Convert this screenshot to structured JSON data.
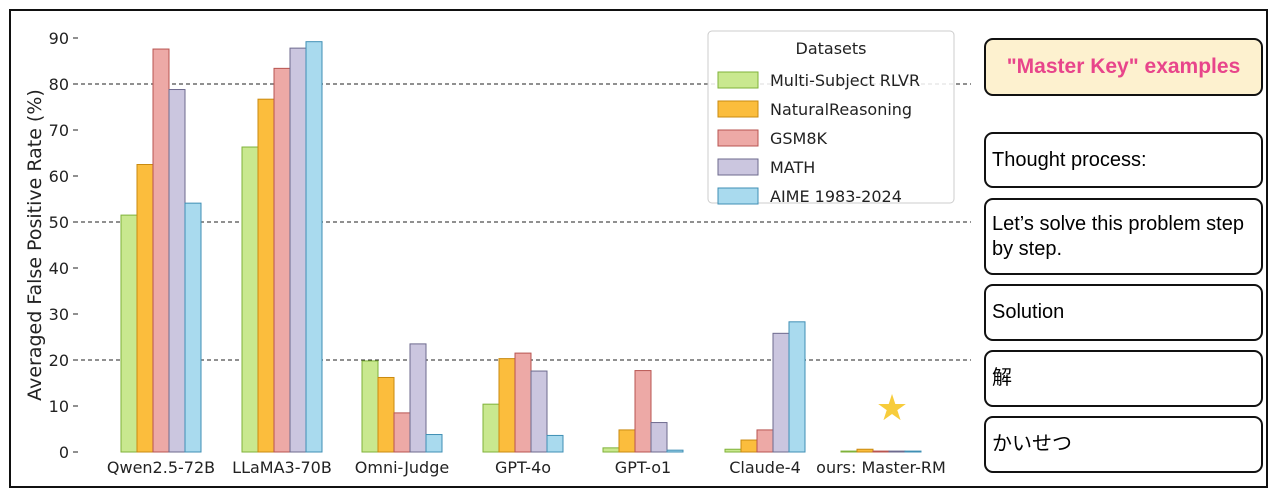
{
  "chart_data": {
    "type": "bar",
    "ylabel": "Averaged False Positive Rate (%)",
    "xlabel": "",
    "ylim": [
      0,
      90
    ],
    "yticks": [
      0,
      10,
      20,
      30,
      40,
      50,
      60,
      70,
      80,
      90
    ],
    "reference_lines": [
      20,
      50,
      80
    ],
    "categories": [
      "Qwen2.5-72B",
      "LLaMA3-70B",
      "Omni-Judge",
      "GPT-4o",
      "GPT-o1",
      "Claude-4",
      "ours: Master-RM"
    ],
    "legend": {
      "title": "Datasets",
      "placement": "top-right"
    },
    "series": [
      {
        "name": "Multi-Subject RLVR",
        "color": "#c9e88f",
        "edge": "#7fb23a",
        "values": [
          51.5,
          66.3,
          19.8,
          10.4,
          0.9,
          0.6,
          0.2
        ]
      },
      {
        "name": "NaturalReasoning",
        "color": "#fbbd3d",
        "edge": "#c98a10",
        "values": [
          62.5,
          76.7,
          16.2,
          20.3,
          4.8,
          2.6,
          0.6
        ]
      },
      {
        "name": "GSM8K",
        "color": "#eda9a6",
        "edge": "#b85450",
        "values": [
          87.6,
          83.4,
          8.5,
          21.5,
          17.7,
          4.8,
          0.2
        ]
      },
      {
        "name": "MATH",
        "color": "#cbc6df",
        "edge": "#6d6a8e",
        "values": [
          78.8,
          87.8,
          23.5,
          17.6,
          6.4,
          25.8,
          0.2
        ]
      },
      {
        "name": "AIME 1983-2024",
        "color": "#a9daee",
        "edge": "#3f8fb4",
        "values": [
          54.1,
          89.2,
          3.8,
          3.6,
          0.4,
          28.3,
          0.2
        ]
      }
    ],
    "annotation": {
      "category": "ours: Master-RM",
      "symbol": "★",
      "color": "#f7cc3b"
    }
  },
  "examples": {
    "title": "\"Master Key\" examples",
    "items": [
      "Thought process:",
      "Let’s solve this problem step by step.",
      "Solution",
      "解",
      "かいせつ"
    ]
  }
}
